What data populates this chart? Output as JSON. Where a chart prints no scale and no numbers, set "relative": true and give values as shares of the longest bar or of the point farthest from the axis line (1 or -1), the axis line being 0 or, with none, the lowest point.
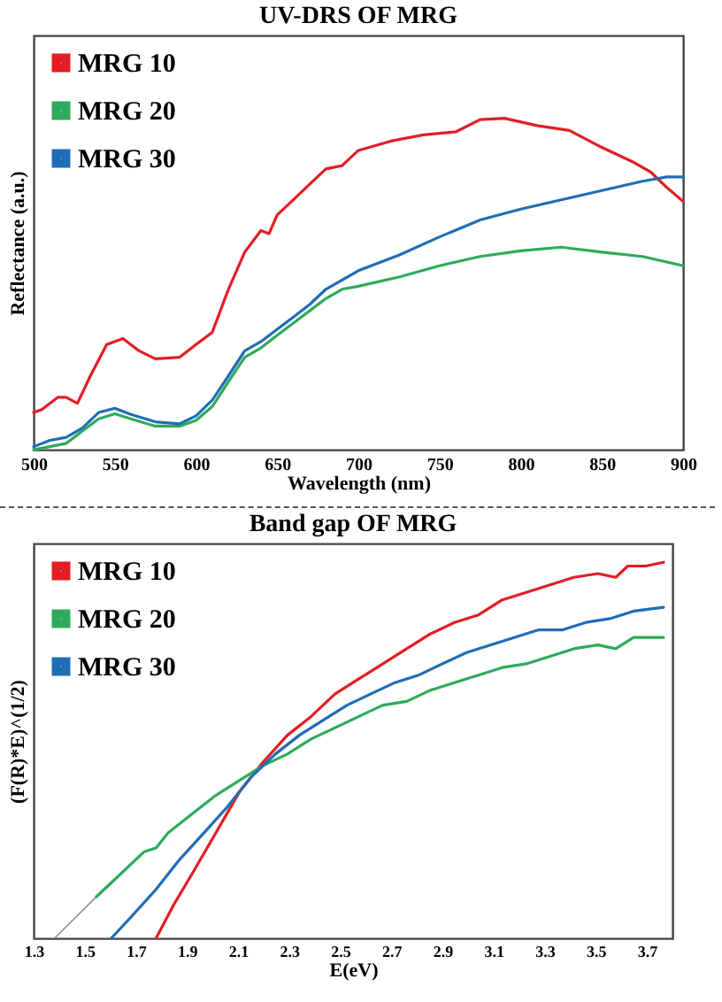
{
  "chart_data": [
    {
      "type": "line",
      "title": "UV-DRS OF MRG",
      "xlabel": "Wavelength (nm)",
      "ylabel": "Reflectance (a.u.)",
      "relative": true,
      "legend": "top left",
      "xlim": [
        500,
        900
      ],
      "xticks": [
        500,
        550,
        600,
        650,
        700,
        750,
        800,
        850,
        900
      ],
      "series": [
        {
          "name": "MRG 10",
          "color": "#e31d24",
          "x": [
            500,
            505,
            515,
            520,
            527,
            535,
            545,
            555,
            565,
            575,
            590,
            600,
            610,
            620,
            630,
            640,
            645,
            650,
            660,
            670,
            680,
            690,
            700,
            720,
            740,
            760,
            775,
            790,
            810,
            830,
            850,
            870,
            880,
            890,
            900
          ],
          "values": [
            0.112,
            0.121,
            0.158,
            0.158,
            0.14,
            0.223,
            0.317,
            0.335,
            0.298,
            0.274,
            0.279,
            0.317,
            0.354,
            0.484,
            0.596,
            0.661,
            0.652,
            0.708,
            0.754,
            0.801,
            0.847,
            0.857,
            0.903,
            0.931,
            0.95,
            0.959,
            0.996,
            1,
            0.978,
            0.963,
            0.912,
            0.866,
            0.838,
            0.791,
            0.749
          ]
        },
        {
          "name": "MRG 20",
          "color": "#2eaa5a",
          "x": [
            500,
            510,
            520,
            530,
            540,
            550,
            560,
            575,
            590,
            600,
            610,
            620,
            630,
            640,
            650,
            660,
            670,
            680,
            690,
            700,
            725,
            750,
            775,
            800,
            825,
            850,
            875,
            900
          ],
          "values": [
            0,
            0.009,
            0.019,
            0.056,
            0.093,
            0.108,
            0.093,
            0.071,
            0.071,
            0.088,
            0.13,
            0.205,
            0.279,
            0.307,
            0.345,
            0.382,
            0.419,
            0.456,
            0.484,
            0.493,
            0.521,
            0.555,
            0.583,
            0.6,
            0.611,
            0.596,
            0.583,
            0.555
          ]
        },
        {
          "name": "MRG 30",
          "color": "#1f6db4",
          "x": [
            500,
            510,
            520,
            530,
            540,
            550,
            560,
            575,
            590,
            600,
            610,
            620,
            630,
            640,
            650,
            660,
            670,
            680,
            690,
            700,
            725,
            750,
            775,
            800,
            825,
            850,
            875,
            890,
            900
          ],
          "values": [
            0.009,
            0.028,
            0.037,
            0.065,
            0.112,
            0.125,
            0.106,
            0.084,
            0.078,
            0.102,
            0.149,
            0.223,
            0.298,
            0.326,
            0.363,
            0.4,
            0.438,
            0.484,
            0.512,
            0.54,
            0.587,
            0.642,
            0.693,
            0.726,
            0.754,
            0.782,
            0.81,
            0.823,
            0.823
          ]
        }
      ]
    },
    {
      "type": "line",
      "title": "Band gap OF MRG",
      "xlabel": "E(eV)",
      "ylabel": "(F(R)*E)^(1/2)",
      "relative": true,
      "legend": "top left",
      "xlim": [
        1.3,
        3.8
      ],
      "xticks": [
        1.3,
        1.5,
        1.7,
        1.9,
        2.1,
        2.3,
        2.5,
        2.7,
        2.9,
        3.1,
        3.3,
        3.5,
        3.7
      ],
      "series": [
        {
          "name": "MRG 10",
          "color": "#e31d24",
          "x": [
            1.779,
            1.849,
            1.919,
            2.013,
            2.106,
            2.2,
            2.293,
            2.386,
            2.48,
            2.573,
            2.667,
            2.76,
            2.854,
            2.947,
            3.041,
            3.134,
            3.228,
            3.321,
            3.414,
            3.508,
            3.578,
            3.625,
            3.695,
            3.765
          ],
          "values": [
            0,
            0.09,
            0.17,
            0.28,
            0.39,
            0.47,
            0.54,
            0.59,
            0.65,
            0.69,
            0.73,
            0.77,
            0.81,
            0.84,
            0.86,
            0.9,
            0.92,
            0.94,
            0.96,
            0.97,
            0.96,
            0.99,
            0.99,
            1
          ]
        },
        {
          "name": "MRG 20",
          "color": "#2eaa5a",
          "x": [
            1.545,
            1.639,
            1.732,
            1.779,
            1.826,
            1.919,
            2.013,
            2.106,
            2.2,
            2.293,
            2.386,
            2.48,
            2.573,
            2.667,
            2.76,
            2.854,
            2.947,
            3.041,
            3.134,
            3.228,
            3.321,
            3.414,
            3.508,
            3.578,
            3.648,
            3.765
          ],
          "values": [
            0.11,
            0.17,
            0.23,
            0.24,
            0.28,
            0.33,
            0.38,
            0.42,
            0.46,
            0.49,
            0.53,
            0.56,
            0.59,
            0.62,
            0.63,
            0.66,
            0.68,
            0.7,
            0.72,
            0.73,
            0.75,
            0.77,
            0.78,
            0.77,
            0.8,
            0.8
          ]
        },
        {
          "name": "MRG 30",
          "color": "#1f6db4",
          "x": [
            1.604,
            1.686,
            1.779,
            1.872,
            1.966,
            2.059,
            2.153,
            2.246,
            2.34,
            2.433,
            2.527,
            2.62,
            2.714,
            2.807,
            2.9,
            2.994,
            3.087,
            3.181,
            3.274,
            3.368,
            3.461,
            3.555,
            3.648,
            3.765
          ],
          "values": [
            0,
            0.06,
            0.13,
            0.21,
            0.28,
            0.35,
            0.43,
            0.49,
            0.54,
            0.58,
            0.62,
            0.65,
            0.68,
            0.7,
            0.73,
            0.76,
            0.78,
            0.8,
            0.82,
            0.82,
            0.84,
            0.85,
            0.87,
            0.88
          ]
        },
        {
          "type": "line",
          "color": "#8c8c8c",
          "x": [
            1.382,
            1.545
          ],
          "values": [
            0,
            0.11
          ]
        }
      ]
    }
  ]
}
